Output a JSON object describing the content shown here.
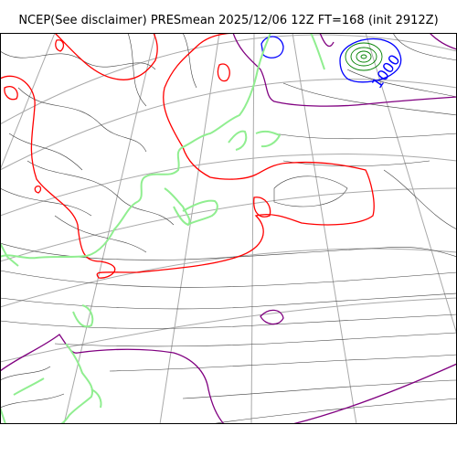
{
  "title": "NCEP(See disclaimer) PRESmean 2025/12/06 12Z FT=168 (init 2912Z)",
  "contour_label": "1000",
  "colors": {
    "background": "#ffffff",
    "grid": "#a9a9a9",
    "isobar": "#404040",
    "coastline": "#90ee90",
    "isobar_1012": "#ff0000",
    "isobar_1024": "#800080",
    "isobar_1000": "#0000ff",
    "low_center": "#008000"
  }
}
